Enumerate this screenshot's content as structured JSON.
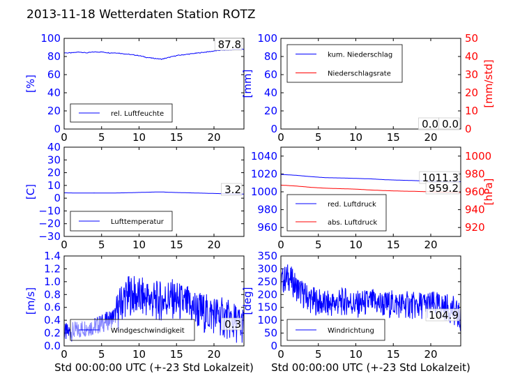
{
  "title": "2013-11-18 Wetterdaten Station ROTZ",
  "xlabel": "Std 00:00:00 UTC (+-23 Std Lokalzeit)",
  "chart_data": [
    {
      "type": "line",
      "ylabel": "[%]",
      "x_ticks": [
        "0",
        "5",
        "10",
        "15",
        "20"
      ],
      "xlim": [
        0,
        24
      ],
      "ylim": [
        0,
        100
      ],
      "y_ticks": [
        "0",
        "20",
        "40",
        "60",
        "80",
        "100"
      ],
      "legend": "lower-left",
      "series": [
        {
          "name": "rel. Luftfeuchte",
          "color": "#0000ff",
          "x": [
            0,
            1,
            2,
            3,
            4,
            5,
            6,
            7,
            8,
            9,
            10,
            11,
            12,
            13,
            14,
            15,
            16,
            17,
            18,
            19,
            20,
            21,
            22,
            23,
            24
          ],
          "y": [
            84,
            84,
            85,
            84,
            85,
            85,
            84,
            84,
            83,
            82,
            81,
            79,
            78,
            77,
            79,
            81,
            82,
            83,
            84,
            85,
            86,
            87,
            87,
            88,
            88
          ]
        }
      ],
      "last_values": [
        {
          "text": "87.8"
        }
      ]
    },
    {
      "type": "line",
      "ylabel": "[mm]",
      "ylabel2": "[mm/std]",
      "x_ticks": [
        "0",
        "5",
        "10",
        "15",
        "20"
      ],
      "xlim": [
        0,
        24
      ],
      "ylim": [
        0,
        100
      ],
      "ylim2": [
        0,
        50
      ],
      "y_ticks": [
        "0",
        "20",
        "40",
        "60",
        "80",
        "100"
      ],
      "y_ticks2": [
        "0",
        "10",
        "20",
        "30",
        "40",
        "50"
      ],
      "legend": "top-left",
      "series": [
        {
          "name": "kum. Niederschlag",
          "color": "#0000ff",
          "axis": "left",
          "x": [
            0,
            24
          ],
          "y": [
            0,
            0
          ]
        },
        {
          "name": "Niederschlagsrate",
          "color": "#ff0000",
          "axis": "right",
          "x": [
            0,
            24
          ],
          "y": [
            0,
            0
          ]
        }
      ],
      "last_values": [
        {
          "text": "0.0"
        },
        {
          "text": "0.0"
        }
      ]
    },
    {
      "type": "line",
      "ylabel": "[C]",
      "x_ticks": [
        "0",
        "5",
        "10",
        "15",
        "20"
      ],
      "xlim": [
        0,
        24
      ],
      "ylim": [
        -30,
        40
      ],
      "y_ticks": [
        "−30",
        "−20",
        "−10",
        "0",
        "10",
        "20",
        "30",
        "40"
      ],
      "legend": "lower-left",
      "series": [
        {
          "name": "Lufttemperatur",
          "color": "#0000ff",
          "x": [
            0,
            2,
            4,
            6,
            8,
            10,
            12,
            13,
            14,
            16,
            18,
            20,
            22,
            24
          ],
          "y": [
            4.2,
            4.0,
            4.1,
            4.0,
            4.2,
            4.5,
            4.8,
            4.9,
            4.6,
            4.3,
            4.0,
            3.7,
            3.4,
            3.2
          ]
        }
      ],
      "last_values": [
        {
          "text": "3.2"
        }
      ]
    },
    {
      "type": "line",
      "ylabel": "",
      "ylabel2": "[hPa]",
      "x_ticks": [
        "0",
        "5",
        "10",
        "15",
        "20"
      ],
      "xlim": [
        0,
        24
      ],
      "ylim": [
        950,
        1050
      ],
      "ylim2": [
        910,
        1010
      ],
      "y_ticks": [
        "960",
        "980",
        "1000",
        "1020",
        "1040"
      ],
      "y_ticks2": [
        "920",
        "940",
        "960",
        "980",
        "1000"
      ],
      "legend": "lower-left",
      "series": [
        {
          "name": "red. Luftdruck",
          "color": "#0000ff",
          "axis": "left",
          "x": [
            0,
            2,
            4,
            6,
            8,
            10,
            12,
            14,
            16,
            18,
            20,
            22,
            24
          ],
          "y": [
            1019.5,
            1018.5,
            1017,
            1015.8,
            1015.5,
            1015,
            1014.5,
            1013.5,
            1013,
            1012.5,
            1012,
            1011.6,
            1011.3
          ]
        },
        {
          "name": "abs. Luftdruck",
          "color": "#ff0000",
          "axis": "right",
          "x": [
            0,
            2,
            4,
            6,
            8,
            10,
            12,
            14,
            16,
            18,
            20,
            22,
            24
          ],
          "y": [
            967.5,
            966.5,
            965,
            964,
            963.5,
            963,
            962,
            961.3,
            960.8,
            960.5,
            960,
            959.6,
            959.2
          ]
        }
      ],
      "last_values": [
        {
          "text": "1011.3"
        },
        {
          "text": "959.2"
        }
      ]
    },
    {
      "type": "line",
      "ylabel": "[m/s]",
      "x_ticks": [
        "0",
        "5",
        "10",
        "15",
        "20"
      ],
      "xlim": [
        0,
        24
      ],
      "ylim": [
        0,
        1.4
      ],
      "y_ticks": [
        "0.0",
        "0.2",
        "0.4",
        "0.6",
        "0.8",
        "1.0",
        "1.2",
        "1.4"
      ],
      "legend": "lower-left",
      "series": [
        {
          "name": "Windgeschwindigkeit",
          "color": "#0000ff",
          "x": [
            0,
            1,
            2,
            3,
            4,
            5,
            6,
            7,
            8,
            9,
            10,
            11,
            12,
            13,
            14,
            15,
            16,
            17,
            18,
            19,
            20,
            21,
            22,
            23,
            24
          ],
          "y": [
            0.2,
            0.22,
            0.25,
            0.3,
            0.3,
            0.35,
            0.4,
            0.5,
            0.75,
            0.8,
            0.75,
            0.75,
            0.7,
            0.7,
            0.75,
            0.7,
            0.65,
            0.6,
            0.55,
            0.5,
            0.5,
            0.45,
            0.4,
            0.35,
            0.3
          ]
        }
      ],
      "last_values": [
        {
          "text": "0.3"
        }
      ]
    },
    {
      "type": "line",
      "ylabel": "[deg]",
      "x_ticks": [
        "0",
        "5",
        "10",
        "15",
        "20"
      ],
      "xlim": [
        0,
        24
      ],
      "ylim": [
        0,
        350
      ],
      "y_ticks": [
        "0",
        "50",
        "100",
        "150",
        "200",
        "250",
        "300",
        "350"
      ],
      "legend": "lower-left",
      "series": [
        {
          "name": "Windrichtung",
          "color": "#0000ff",
          "x": [
            0,
            1,
            2,
            3,
            4,
            5,
            6,
            7,
            8,
            9,
            10,
            11,
            12,
            13,
            14,
            15,
            16,
            17,
            18,
            19,
            20,
            21,
            22,
            23,
            24
          ],
          "y": [
            250,
            270,
            230,
            200,
            180,
            170,
            160,
            165,
            170,
            175,
            160,
            165,
            170,
            165,
            160,
            165,
            160,
            160,
            155,
            160,
            160,
            155,
            150,
            140,
            105
          ]
        }
      ],
      "last_values": [
        {
          "text": "104.9"
        }
      ]
    }
  ]
}
